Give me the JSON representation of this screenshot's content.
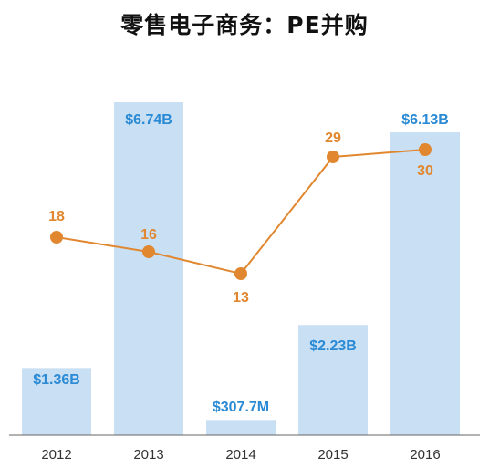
{
  "chart_data": {
    "type": "bar+line",
    "title": "零售电子商务：PE并购",
    "categories": [
      "2012",
      "2013",
      "2014",
      "2015",
      "2016"
    ],
    "bars": {
      "values": [
        1.36,
        6.74,
        0.3077,
        2.23,
        6.13
      ],
      "labels": [
        "$1.36B",
        "$6.74B",
        "$307.7M",
        "$2.23B",
        "$6.13B"
      ],
      "unit": "USD billions",
      "ylim": [
        0,
        6.74
      ],
      "color": "#c9dff4",
      "label_color": "#2a8ad4"
    },
    "line": {
      "values": [
        18,
        16,
        13,
        29,
        30
      ],
      "labels": [
        "18",
        "16",
        "13",
        "29",
        "30"
      ],
      "color": "#e0872f"
    }
  }
}
